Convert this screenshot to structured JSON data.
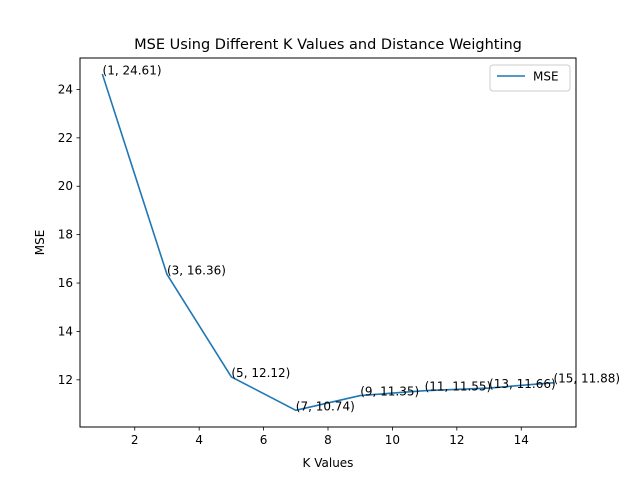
{
  "chart_data": {
    "type": "line",
    "title": "MSE Using Different K Values and Distance Weighting",
    "xlabel": "K Values",
    "ylabel": "MSE",
    "xlim": [
      0.3,
      15.7
    ],
    "ylim": [
      10.05,
      25.3
    ],
    "xticks": [
      2,
      4,
      6,
      8,
      10,
      12,
      14
    ],
    "yticks": [
      12,
      14,
      16,
      18,
      20,
      22,
      24
    ],
    "grid": false,
    "legend_position": "top-right",
    "colors": {
      "series": "#1f77b4"
    },
    "series": [
      {
        "name": "MSE",
        "x": [
          1,
          3,
          5,
          7,
          9,
          11,
          13,
          15
        ],
        "y": [
          24.61,
          16.36,
          12.12,
          10.74,
          11.35,
          11.55,
          11.66,
          11.88
        ],
        "labels": [
          "(1, 24.61)",
          "(3, 16.36)",
          "(5, 12.12)",
          "(7, 10.74)",
          "(9, 11.35)",
          "(11, 11.55)",
          "(13, 11.66)",
          "(15, 11.88)"
        ]
      }
    ]
  }
}
